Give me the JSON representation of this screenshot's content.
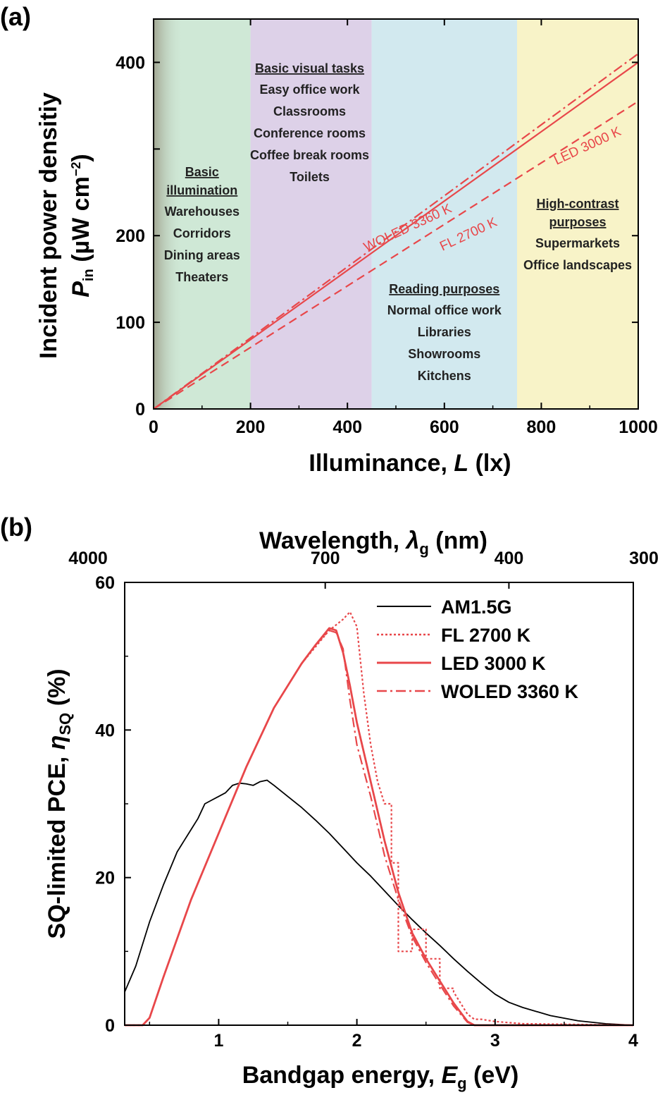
{
  "chart_data": [
    {
      "panel_label": "(a)",
      "type": "line",
      "xlabel": "Illuminance, L (lx)",
      "xlabel_parts": {
        "pre": "Illuminance, ",
        "var": "L",
        "post": " (lx)"
      },
      "ylabel_line1": "Incident power densitiy",
      "ylabel_line2": {
        "var": "P",
        "sub": "in",
        "post": " (µW cm",
        "sup": "−2",
        "end": ")"
      },
      "xlim": [
        0,
        1000
      ],
      "ylim": [
        0,
        450
      ],
      "x_ticks": [
        0,
        200,
        400,
        600,
        800,
        1000
      ],
      "y_ticks": [
        0,
        100,
        200,
        400
      ],
      "regions": [
        {
          "x0": 0,
          "x1": 200,
          "color": "#cfe8d6",
          "heading": [
            "Basic",
            "illumination"
          ],
          "items": [
            "Warehouses",
            "Corridors",
            "Dining areas",
            "Theaters"
          ]
        },
        {
          "x0": 200,
          "x1": 450,
          "color": "#ddd1e8",
          "heading": [
            "Basic visual tasks"
          ],
          "items": [
            "Easy office work",
            "Classrooms",
            "Conference rooms",
            "Coffee break rooms",
            "Toilets"
          ]
        },
        {
          "x0": 450,
          "x1": 750,
          "color": "#d2e9ef",
          "heading": [
            "Reading purposes"
          ],
          "items": [
            "Normal office work",
            "Libraries",
            "Showrooms",
            "Kitchens"
          ]
        },
        {
          "x0": 750,
          "x1": 1000,
          "color": "#f8f3c8",
          "heading": [
            "High-contrast",
            "purposes"
          ],
          "items": [
            "Supermarkets",
            "Office landscapes"
          ]
        }
      ],
      "series": [
        {
          "name": "LED 3000 K",
          "style": "solid",
          "color": "#e8474a",
          "x": [
            0,
            1000
          ],
          "y": [
            0,
            400
          ]
        },
        {
          "name": "WOLED 3360 K",
          "style": "dashdot",
          "color": "#e8474a",
          "x": [
            0,
            1000
          ],
          "y": [
            0,
            410
          ]
        },
        {
          "name": "FL 2700 K",
          "style": "dashed",
          "color": "#e8474a",
          "x": [
            0,
            1000
          ],
          "y": [
            0,
            355
          ]
        }
      ]
    },
    {
      "panel_label": "(b)",
      "type": "line",
      "xlabel_parts": {
        "pre": "Bandgap energy, ",
        "var": "E",
        "sub": "g",
        "post": " (eV)"
      },
      "ylabel_parts": {
        "pre": "SQ-limited PCE, ",
        "var": "η",
        "sub": "SQ",
        "post": " (%)"
      },
      "top_axis_title": {
        "pre": "Wavelength, ",
        "var": "λ",
        "sub": "g",
        "post": " (nm)"
      },
      "xlim": [
        0.32,
        4.0
      ],
      "ylim": [
        0,
        60
      ],
      "x_ticks": [
        1,
        2,
        3,
        4
      ],
      "y_ticks": [
        0,
        20,
        40,
        60
      ],
      "top_ticks": [
        {
          "label": "4000",
          "eV": 0.31
        },
        {
          "label": "700",
          "eV": 1.771
        },
        {
          "label": "400",
          "eV": 3.1
        },
        {
          "label": "300",
          "eV": 4.133
        }
      ],
      "legend_position": "top-right",
      "series": [
        {
          "name": "AM1.5G",
          "style": "solid-thin",
          "color": "#000000",
          "x": [
            0.32,
            0.4,
            0.5,
            0.6,
            0.7,
            0.75,
            0.8,
            0.85,
            0.9,
            0.95,
            1.0,
            1.05,
            1.1,
            1.15,
            1.2,
            1.25,
            1.3,
            1.35,
            1.4,
            1.5,
            1.6,
            1.7,
            1.8,
            1.9,
            2.0,
            2.1,
            2.2,
            2.3,
            2.4,
            2.5,
            2.6,
            2.7,
            2.8,
            2.9,
            3.0,
            3.1,
            3.2,
            3.4,
            3.6,
            3.8,
            4.0
          ],
          "y": [
            4.5,
            8,
            14,
            19,
            23.5,
            25,
            26.5,
            28,
            30,
            30.5,
            31,
            31.5,
            32.5,
            32.8,
            32.7,
            32.5,
            33,
            33.2,
            32.5,
            31,
            29.5,
            27.8,
            26,
            24,
            22,
            20.2,
            18.2,
            16.2,
            14.3,
            12.5,
            10.8,
            9,
            7.3,
            5.7,
            4.2,
            3.1,
            2.4,
            1.3,
            0.6,
            0.2,
            0
          ]
        },
        {
          "name": "FL 2700 K",
          "style": "dotted",
          "color": "#e8474a",
          "x": [
            0.32,
            0.45,
            0.5,
            0.6,
            0.8,
            1.0,
            1.2,
            1.4,
            1.6,
            1.8,
            1.9,
            1.95,
            2.0,
            2.05,
            2.1,
            2.15,
            2.2,
            2.2,
            2.25,
            2.25,
            2.3,
            2.3,
            2.4,
            2.4,
            2.5,
            2.5,
            2.6,
            2.6,
            2.7,
            2.7,
            2.8,
            2.85,
            2.9,
            3.0,
            3.2,
            4.0
          ],
          "y": [
            0,
            0,
            1,
            6.5,
            17,
            26,
            35,
            43,
            49,
            53.5,
            55,
            56,
            54,
            45,
            38,
            33,
            30,
            30,
            30,
            22,
            22,
            10,
            10,
            13,
            13,
            9,
            9,
            5,
            5,
            4.5,
            1.5,
            0.8,
            0.8,
            0.5,
            0.2,
            0
          ]
        },
        {
          "name": "LED 3000 K",
          "style": "solid-thick",
          "color": "#e8474a",
          "x": [
            0.32,
            0.45,
            0.5,
            0.6,
            0.8,
            1.0,
            1.2,
            1.4,
            1.6,
            1.7,
            1.8,
            1.85,
            1.9,
            1.95,
            2.0,
            2.1,
            2.2,
            2.3,
            2.4,
            2.5,
            2.6,
            2.7,
            2.8,
            2.85,
            2.9,
            3.0,
            4.0
          ],
          "y": [
            0,
            0,
            1,
            6.5,
            17,
            26,
            35,
            43,
            49,
            51.5,
            53.8,
            53.5,
            50.5,
            46,
            41,
            33,
            25,
            18,
            12.5,
            9,
            6,
            3,
            0.5,
            0,
            0,
            0,
            0
          ]
        },
        {
          "name": "WOLED 3360 K",
          "style": "dashdot",
          "color": "#e8474a",
          "x": [
            0.32,
            0.45,
            0.5,
            0.6,
            0.8,
            1.0,
            1.2,
            1.4,
            1.6,
            1.7,
            1.8,
            1.85,
            1.9,
            1.95,
            2.0,
            2.1,
            2.2,
            2.3,
            2.4,
            2.5,
            2.6,
            2.7,
            2.8,
            2.85,
            2.9,
            4.0
          ],
          "y": [
            0,
            0,
            1,
            6.5,
            17,
            26,
            35,
            43,
            49,
            51.5,
            53.5,
            53.2,
            51,
            44,
            38,
            31,
            23,
            17,
            12,
            8.5,
            5.5,
            2.6,
            0.4,
            0,
            0,
            0
          ]
        }
      ]
    }
  ],
  "line_labels": {
    "woled": "WOLED 3360 K",
    "fl": "FL 2700 K",
    "led": "LED 3000 K"
  }
}
